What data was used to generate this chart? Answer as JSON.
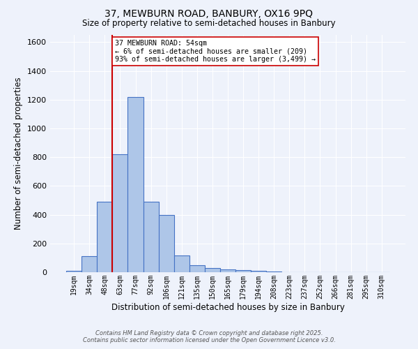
{
  "title_line1": "37, MEWBURN ROAD, BANBURY, OX16 9PQ",
  "title_line2": "Size of property relative to semi-detached houses in Banbury",
  "xlabel": "Distribution of semi-detached houses by size in Banbury",
  "ylabel": "Number of semi-detached properties",
  "bin_labels": [
    "19sqm",
    "34sqm",
    "48sqm",
    "63sqm",
    "77sqm",
    "92sqm",
    "106sqm",
    "121sqm",
    "135sqm",
    "150sqm",
    "165sqm",
    "179sqm",
    "194sqm",
    "208sqm",
    "223sqm",
    "237sqm",
    "252sqm",
    "266sqm",
    "281sqm",
    "295sqm",
    "310sqm"
  ],
  "bar_values": [
    10,
    110,
    490,
    820,
    1220,
    490,
    400,
    115,
    50,
    30,
    20,
    15,
    10,
    5,
    0,
    0,
    0,
    0,
    0,
    0,
    0
  ],
  "bar_color": "#aec6e8",
  "bar_edge_color": "#4472c4",
  "background_color": "#eef2fb",
  "grid_color": "#ffffff",
  "vline_x": 2.5,
  "vline_color": "#cc0000",
  "annotation_text": "37 MEWBURN ROAD: 54sqm\n← 6% of semi-detached houses are smaller (209)\n93% of semi-detached houses are larger (3,499) →",
  "annotation_box_color": "#ffffff",
  "annotation_box_edge": "#cc0000",
  "ylim": [
    0,
    1650
  ],
  "yticks": [
    0,
    200,
    400,
    600,
    800,
    1000,
    1200,
    1400,
    1600
  ],
  "footer_line1": "Contains HM Land Registry data © Crown copyright and database right 2025.",
  "footer_line2": "Contains public sector information licensed under the Open Government Licence v3.0."
}
